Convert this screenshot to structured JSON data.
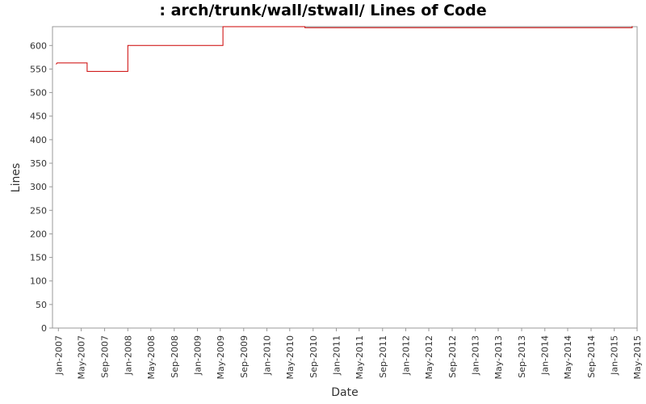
{
  "chart_data": {
    "type": "line",
    "title": ": arch/trunk/wall/stwall/ Lines of Code",
    "xlabel": "Date",
    "ylabel": "Lines",
    "ylim": [
      0,
      640
    ],
    "yticks": [
      0,
      50,
      100,
      150,
      200,
      250,
      300,
      350,
      400,
      450,
      500,
      550,
      600
    ],
    "xlim": [
      "2006-12-01",
      "2015-05-01"
    ],
    "xticks": [
      "Jan-2007",
      "May-2007",
      "Sep-2007",
      "Jan-2008",
      "May-2008",
      "Sep-2008",
      "Jan-2009",
      "May-2009",
      "Sep-2009",
      "Jan-2010",
      "May-2010",
      "Sep-2010",
      "Jan-2011",
      "May-2011",
      "Sep-2011",
      "Jan-2012",
      "May-2012",
      "Sep-2012",
      "Jan-2013",
      "May-2013",
      "Sep-2013",
      "Jan-2014",
      "May-2014",
      "Sep-2014",
      "Jan-2015",
      "May-2015"
    ],
    "grid": false,
    "series": [
      {
        "color": "#cc0000",
        "step": true,
        "points": [
          {
            "x": "2006-12-20",
            "y": 560
          },
          {
            "x": "2006-12-25",
            "y": 563
          },
          {
            "x": "2007-06-01",
            "y": 563
          },
          {
            "x": "2007-06-01",
            "y": 545
          },
          {
            "x": "2008-01-01",
            "y": 545
          },
          {
            "x": "2008-01-01",
            "y": 600
          },
          {
            "x": "2009-05-15",
            "y": 600
          },
          {
            "x": "2009-05-15",
            "y": 640
          },
          {
            "x": "2010-07-20",
            "y": 640
          },
          {
            "x": "2010-07-20",
            "y": 638
          },
          {
            "x": "2015-04-05",
            "y": 638
          },
          {
            "x": "2015-04-05",
            "y": 641
          }
        ]
      }
    ]
  }
}
